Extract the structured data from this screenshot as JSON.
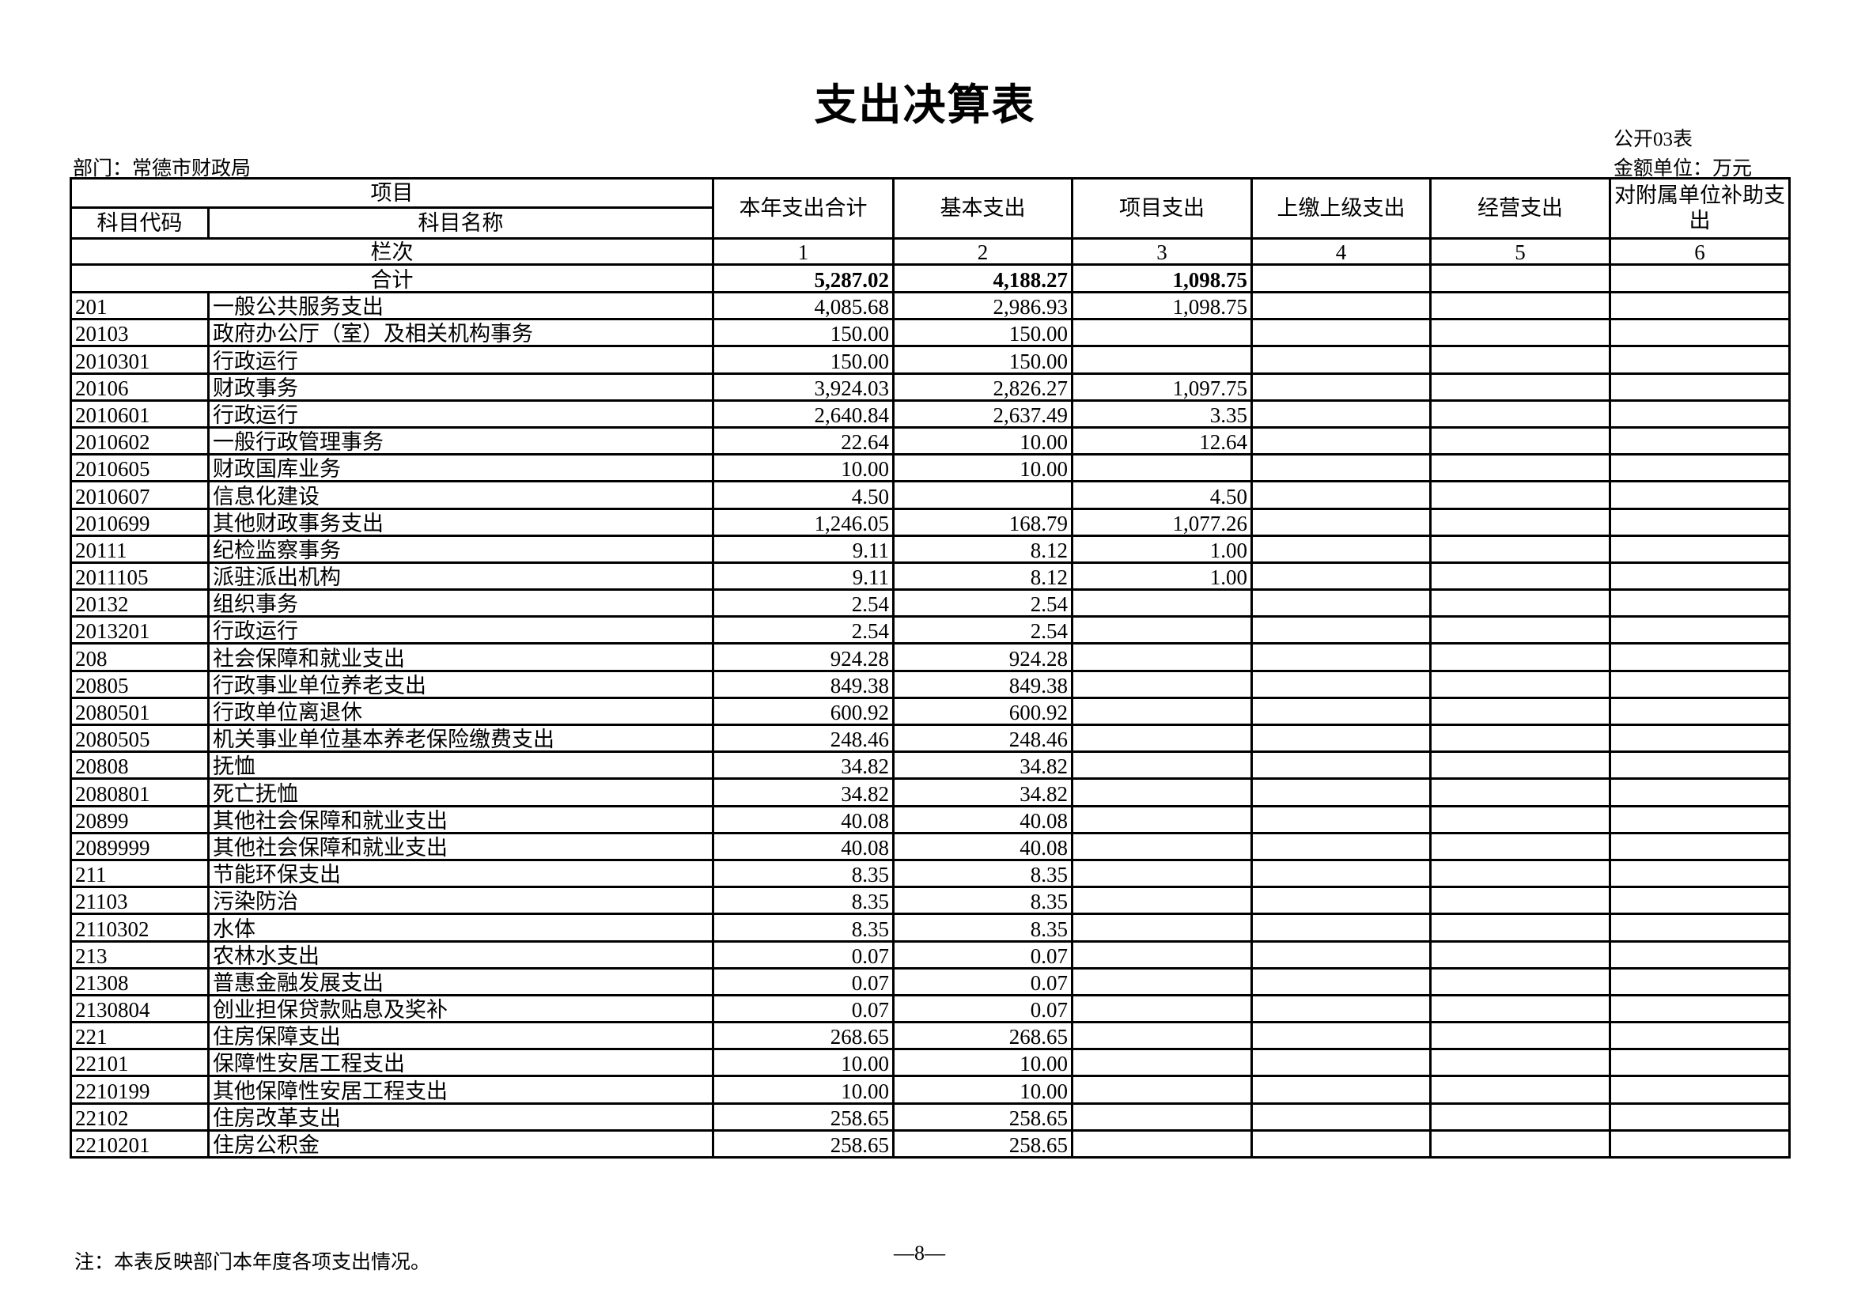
{
  "title": "支出决算表",
  "form_no": "公开03表",
  "unit": "金额单位：万元",
  "department": "部门：常德市财政局",
  "headers": {
    "item": "项目",
    "code": "科目代码",
    "name": "科目名称",
    "total": "本年支出合计",
    "basic": "基本支出",
    "project": "项目支出",
    "upper": "上缴上级支出",
    "business": "经营支出",
    "subsidy": "对附属单位补助支出"
  },
  "column_index": {
    "label": "栏次",
    "nums": [
      "1",
      "2",
      "3",
      "4",
      "5",
      "6"
    ]
  },
  "total_row": {
    "label": "合计",
    "total": "5,287.02",
    "basic": "4,188.27",
    "project": "1,098.75",
    "upper": "",
    "business": "",
    "subsidy": ""
  },
  "rows": [
    {
      "code": "201",
      "name": "一般公共服务支出",
      "total": "4,085.68",
      "basic": "2,986.93",
      "project": "1,098.75"
    },
    {
      "code": "20103",
      "name": "政府办公厅（室）及相关机构事务",
      "total": "150.00",
      "basic": "150.00",
      "project": ""
    },
    {
      "code": "2010301",
      "name": "行政运行",
      "total": "150.00",
      "basic": "150.00",
      "project": ""
    },
    {
      "code": "20106",
      "name": "财政事务",
      "total": "3,924.03",
      "basic": "2,826.27",
      "project": "1,097.75"
    },
    {
      "code": "2010601",
      "name": "行政运行",
      "total": "2,640.84",
      "basic": "2,637.49",
      "project": "3.35"
    },
    {
      "code": "2010602",
      "name": "一般行政管理事务",
      "total": "22.64",
      "basic": "10.00",
      "project": "12.64"
    },
    {
      "code": "2010605",
      "name": "财政国库业务",
      "total": "10.00",
      "basic": "10.00",
      "project": ""
    },
    {
      "code": "2010607",
      "name": "信息化建设",
      "total": "4.50",
      "basic": "",
      "project": "4.50"
    },
    {
      "code": "2010699",
      "name": "其他财政事务支出",
      "total": "1,246.05",
      "basic": "168.79",
      "project": "1,077.26"
    },
    {
      "code": "20111",
      "name": "纪检监察事务",
      "total": "9.11",
      "basic": "8.12",
      "project": "1.00"
    },
    {
      "code": "2011105",
      "name": "派驻派出机构",
      "total": "9.11",
      "basic": "8.12",
      "project": "1.00"
    },
    {
      "code": "20132",
      "name": "组织事务",
      "total": "2.54",
      "basic": "2.54",
      "project": ""
    },
    {
      "code": "2013201",
      "name": "行政运行",
      "total": "2.54",
      "basic": "2.54",
      "project": ""
    },
    {
      "code": "208",
      "name": "社会保障和就业支出",
      "total": "924.28",
      "basic": "924.28",
      "project": ""
    },
    {
      "code": "20805",
      "name": "行政事业单位养老支出",
      "total": "849.38",
      "basic": "849.38",
      "project": ""
    },
    {
      "code": "2080501",
      "name": "行政单位离退休",
      "total": "600.92",
      "basic": "600.92",
      "project": ""
    },
    {
      "code": "2080505",
      "name": "机关事业单位基本养老保险缴费支出",
      "total": "248.46",
      "basic": "248.46",
      "project": ""
    },
    {
      "code": "20808",
      "name": "抚恤",
      "total": "34.82",
      "basic": "34.82",
      "project": ""
    },
    {
      "code": "2080801",
      "name": "死亡抚恤",
      "total": "34.82",
      "basic": "34.82",
      "project": ""
    },
    {
      "code": "20899",
      "name": "其他社会保障和就业支出",
      "total": "40.08",
      "basic": "40.08",
      "project": ""
    },
    {
      "code": "2089999",
      "name": "其他社会保障和就业支出",
      "total": "40.08",
      "basic": "40.08",
      "project": ""
    },
    {
      "code": "211",
      "name": "节能环保支出",
      "total": "8.35",
      "basic": "8.35",
      "project": ""
    },
    {
      "code": "21103",
      "name": "污染防治",
      "total": "8.35",
      "basic": "8.35",
      "project": ""
    },
    {
      "code": "2110302",
      "name": "水体",
      "total": "8.35",
      "basic": "8.35",
      "project": ""
    },
    {
      "code": "213",
      "name": "农林水支出",
      "total": "0.07",
      "basic": "0.07",
      "project": ""
    },
    {
      "code": "21308",
      "name": "普惠金融发展支出",
      "total": "0.07",
      "basic": "0.07",
      "project": ""
    },
    {
      "code": "2130804",
      "name": "创业担保贷款贴息及奖补",
      "total": "0.07",
      "basic": "0.07",
      "project": ""
    },
    {
      "code": "221",
      "name": "住房保障支出",
      "total": "268.65",
      "basic": "268.65",
      "project": ""
    },
    {
      "code": "22101",
      "name": "保障性安居工程支出",
      "total": "10.00",
      "basic": "10.00",
      "project": ""
    },
    {
      "code": "2210199",
      "name": "其他保障性安居工程支出",
      "total": "10.00",
      "basic": "10.00",
      "project": ""
    },
    {
      "code": "22102",
      "name": "住房改革支出",
      "total": "258.65",
      "basic": "258.65",
      "project": ""
    },
    {
      "code": "2210201",
      "name": "住房公积金",
      "total": "258.65",
      "basic": "258.65",
      "project": ""
    }
  ],
  "note": "注：本表反映部门本年度各项支出情况。",
  "page_number": "—8—"
}
